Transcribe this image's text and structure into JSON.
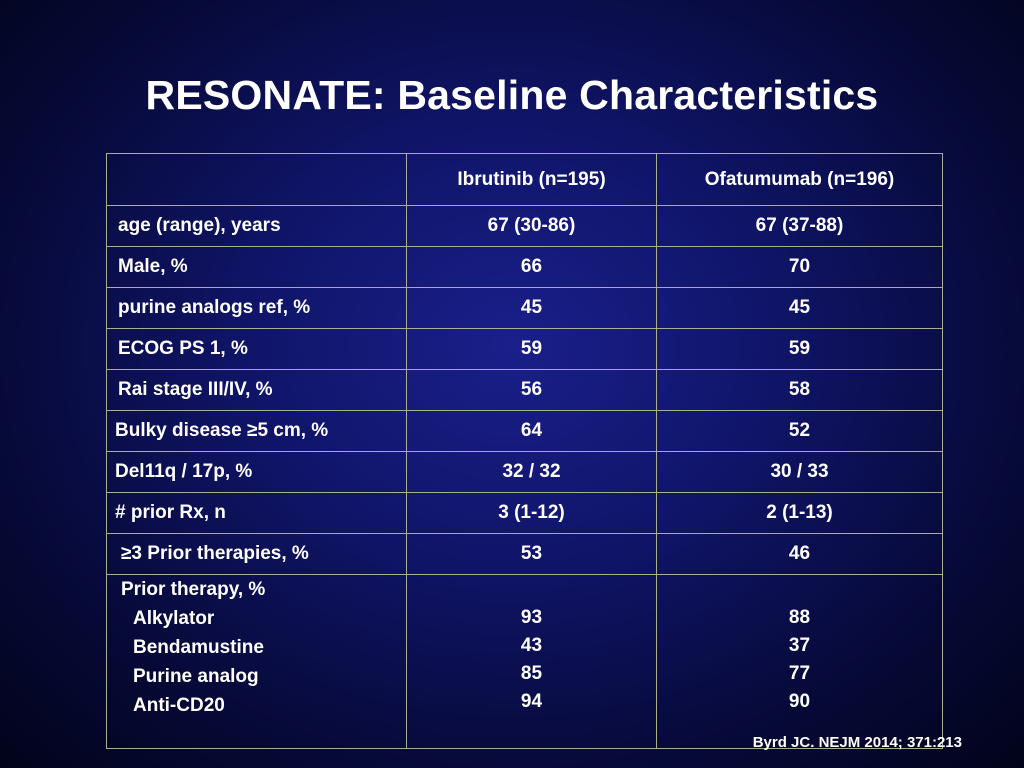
{
  "title": "RESONATE: Baseline Characteristics",
  "table": {
    "headers": [
      "",
      "Ibrutinib (n=195)",
      "Ofatumumab (n=196)"
    ],
    "rows": [
      {
        "label": "age (range), years",
        "ibrutinib": "67 (30-86)",
        "ofatumumab": "67 (37-88)"
      },
      {
        "label": "Male, %",
        "ibrutinib": "66",
        "ofatumumab": "70"
      },
      {
        "label": "purine analogs ref, %",
        "ibrutinib": "45",
        "ofatumumab": "45"
      },
      {
        "label": "ECOG PS 1, %",
        "ibrutinib": "59",
        "ofatumumab": "59"
      },
      {
        "label": "Rai stage III/IV, %",
        "ibrutinib": "56",
        "ofatumumab": "58"
      },
      {
        "label": "Bulky disease ≥5 cm, %",
        "ibrutinib": "64",
        "ofatumumab": "52"
      },
      {
        "label": "Del11q / 17p, %",
        "ibrutinib": "32 / 32",
        "ofatumumab": "30 / 33"
      },
      {
        "label": "# prior Rx, n",
        "ibrutinib": "3 (1-12)",
        "ofatumumab": "2 (1-13)"
      },
      {
        "label": "≥3 Prior therapies, %",
        "ibrutinib": "53",
        "ofatumumab": "46"
      }
    ],
    "prior_therapy": {
      "label": "Prior therapy, %",
      "items": [
        {
          "label": "Alkylator",
          "ibrutinib": "93",
          "ofatumumab": "88"
        },
        {
          "label": "Bendamustine",
          "ibrutinib": "43",
          "ofatumumab": "37"
        },
        {
          "label": "Purine analog",
          "ibrutinib": "85",
          "ofatumumab": "77"
        },
        {
          "label": "Anti-CD20",
          "ibrutinib": "94",
          "ofatumumab": "90"
        }
      ]
    }
  },
  "citation": "Byrd JC. NEJM 2014; 371:213"
}
